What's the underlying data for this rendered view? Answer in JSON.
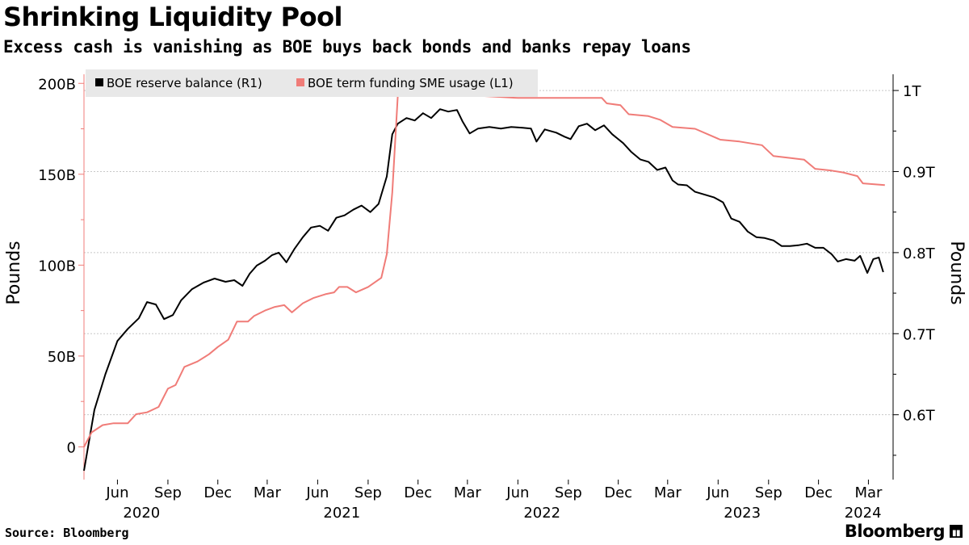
{
  "header": {
    "title": "Shrinking Liquidity Pool",
    "subtitle": "Excess cash is vanishing as BOE buys back bonds and banks repay loans"
  },
  "footer": {
    "source": "Source: Bloomberg",
    "brand": "Bloomberg"
  },
  "chart_data": {
    "type": "line",
    "x_domain": [
      "2020-04-01",
      "2024-04-15"
    ],
    "x_ticks": [
      {
        "date": "2020-06-01",
        "label": "Jun"
      },
      {
        "date": "2020-09-01",
        "label": "Sep"
      },
      {
        "date": "2020-12-01",
        "label": "Dec"
      },
      {
        "date": "2021-03-01",
        "label": "Mar"
      },
      {
        "date": "2021-06-01",
        "label": "Jun"
      },
      {
        "date": "2021-09-01",
        "label": "Sep"
      },
      {
        "date": "2021-12-01",
        "label": "Dec"
      },
      {
        "date": "2022-03-01",
        "label": "Mar"
      },
      {
        "date": "2022-06-01",
        "label": "Jun"
      },
      {
        "date": "2022-09-01",
        "label": "Sep"
      },
      {
        "date": "2022-12-01",
        "label": "Dec"
      },
      {
        "date": "2023-03-01",
        "label": "Mar"
      },
      {
        "date": "2023-06-01",
        "label": "Jun"
      },
      {
        "date": "2023-09-01",
        "label": "Sep"
      },
      {
        "date": "2023-12-01",
        "label": "Dec"
      },
      {
        "date": "2024-03-01",
        "label": "Mar"
      }
    ],
    "year_labels": [
      {
        "date": "2020-07-15",
        "label": "2020"
      },
      {
        "date": "2021-07-15",
        "label": "2021"
      },
      {
        "date": "2022-07-15",
        "label": "2022"
      },
      {
        "date": "2023-07-15",
        "label": "2023"
      },
      {
        "date": "2024-02-20",
        "label": "2024"
      }
    ],
    "left_axis": {
      "label": "Pounds",
      "ylim": [
        -18,
        205
      ],
      "ticks": [
        {
          "value": 0,
          "label": "0"
        },
        {
          "value": 50,
          "label": "50B"
        },
        {
          "value": 100,
          "label": "100B"
        },
        {
          "value": 150,
          "label": "150B"
        },
        {
          "value": 200,
          "label": "200B"
        }
      ],
      "color": "#f07c78"
    },
    "right_axis": {
      "label": "Pounds",
      "ylim": [
        0.52,
        1.02
      ],
      "ticks": [
        {
          "value": 0.6,
          "label": "0.6T"
        },
        {
          "value": 0.7,
          "label": "0.7T"
        },
        {
          "value": 0.8,
          "label": "0.8T"
        },
        {
          "value": 0.9,
          "label": "0.9T"
        },
        {
          "value": 1.0,
          "label": "1T"
        }
      ],
      "color": "#000000"
    },
    "grid": true,
    "legend_placement": "top-left",
    "series": [
      {
        "name": "BOE reserve balance (R1)",
        "axis": "right",
        "color": "#000000",
        "points": [
          [
            "2020-04-01",
            0.531
          ],
          [
            "2020-04-20",
            0.606
          ],
          [
            "2020-05-10",
            0.65
          ],
          [
            "2020-06-01",
            0.691
          ],
          [
            "2020-06-20",
            0.706
          ],
          [
            "2020-07-10",
            0.719
          ],
          [
            "2020-07-25",
            0.739
          ],
          [
            "2020-08-10",
            0.736
          ],
          [
            "2020-08-25",
            0.718
          ],
          [
            "2020-09-10",
            0.723
          ],
          [
            "2020-09-25",
            0.741
          ],
          [
            "2020-10-15",
            0.755
          ],
          [
            "2020-11-05",
            0.763
          ],
          [
            "2020-11-25",
            0.768
          ],
          [
            "2020-12-15",
            0.764
          ],
          [
            "2020-12-31",
            0.766
          ],
          [
            "2021-01-15",
            0.759
          ],
          [
            "2021-01-28",
            0.774
          ],
          [
            "2021-02-10",
            0.784
          ],
          [
            "2021-02-25",
            0.79
          ],
          [
            "2021-03-10",
            0.797
          ],
          [
            "2021-03-22",
            0.8
          ],
          [
            "2021-04-05",
            0.788
          ],
          [
            "2021-04-20",
            0.805
          ],
          [
            "2021-05-05",
            0.819
          ],
          [
            "2021-05-20",
            0.831
          ],
          [
            "2021-06-05",
            0.833
          ],
          [
            "2021-06-20",
            0.827
          ],
          [
            "2021-07-05",
            0.843
          ],
          [
            "2021-07-20",
            0.846
          ],
          [
            "2021-08-05",
            0.853
          ],
          [
            "2021-08-20",
            0.858
          ],
          [
            "2021-09-05",
            0.85
          ],
          [
            "2021-09-20",
            0.86
          ],
          [
            "2021-10-05",
            0.894
          ],
          [
            "2021-10-15",
            0.946
          ],
          [
            "2021-10-25",
            0.959
          ],
          [
            "2021-11-10",
            0.966
          ],
          [
            "2021-11-25",
            0.963
          ],
          [
            "2021-12-10",
            0.972
          ],
          [
            "2021-12-25",
            0.966
          ],
          [
            "2022-01-10",
            0.977
          ],
          [
            "2022-01-25",
            0.974
          ],
          [
            "2022-02-10",
            0.976
          ],
          [
            "2022-02-20",
            0.962
          ],
          [
            "2022-03-05",
            0.947
          ],
          [
            "2022-03-20",
            0.953
          ],
          [
            "2022-04-10",
            0.955
          ],
          [
            "2022-05-01",
            0.953
          ],
          [
            "2022-05-20",
            0.955
          ],
          [
            "2022-06-10",
            0.954
          ],
          [
            "2022-06-25",
            0.953
          ],
          [
            "2022-07-05",
            0.937
          ],
          [
            "2022-07-20",
            0.952
          ],
          [
            "2022-08-10",
            0.948
          ],
          [
            "2022-08-25",
            0.943
          ],
          [
            "2022-09-05",
            0.94
          ],
          [
            "2022-09-20",
            0.956
          ],
          [
            "2022-10-05",
            0.959
          ],
          [
            "2022-10-20",
            0.951
          ],
          [
            "2022-11-05",
            0.957
          ],
          [
            "2022-11-20",
            0.946
          ],
          [
            "2022-12-10",
            0.935
          ],
          [
            "2022-12-25",
            0.924
          ],
          [
            "2023-01-10",
            0.915
          ],
          [
            "2023-01-25",
            0.912
          ],
          [
            "2023-02-10",
            0.902
          ],
          [
            "2023-02-25",
            0.905
          ],
          [
            "2023-03-10",
            0.889
          ],
          [
            "2023-03-20",
            0.884
          ],
          [
            "2023-04-05",
            0.883
          ],
          [
            "2023-04-20",
            0.875
          ],
          [
            "2023-05-10",
            0.871
          ],
          [
            "2023-05-25",
            0.868
          ],
          [
            "2023-06-10",
            0.862
          ],
          [
            "2023-06-25",
            0.842
          ],
          [
            "2023-07-10",
            0.838
          ],
          [
            "2023-07-25",
            0.826
          ],
          [
            "2023-08-10",
            0.819
          ],
          [
            "2023-08-25",
            0.818
          ],
          [
            "2023-09-10",
            0.815
          ],
          [
            "2023-09-25",
            0.808
          ],
          [
            "2023-10-10",
            0.808
          ],
          [
            "2023-10-25",
            0.809
          ],
          [
            "2023-11-10",
            0.811
          ],
          [
            "2023-11-25",
            0.806
          ],
          [
            "2023-12-10",
            0.806
          ],
          [
            "2023-12-25",
            0.798
          ],
          [
            "2024-01-05",
            0.789
          ],
          [
            "2024-01-20",
            0.792
          ],
          [
            "2024-02-05",
            0.79
          ],
          [
            "2024-02-15",
            0.796
          ],
          [
            "2024-02-28",
            0.775
          ],
          [
            "2024-03-10",
            0.792
          ],
          [
            "2024-03-20",
            0.794
          ],
          [
            "2024-03-28",
            0.776
          ]
        ]
      },
      {
        "name": "BOE term funding SME usage (L1)",
        "axis": "left",
        "color": "#f07c78",
        "points": [
          [
            "2020-04-01",
            0
          ],
          [
            "2020-04-15",
            8
          ],
          [
            "2020-05-05",
            12
          ],
          [
            "2020-05-25",
            13
          ],
          [
            "2020-06-20",
            13
          ],
          [
            "2020-07-05",
            18
          ],
          [
            "2020-07-25",
            19
          ],
          [
            "2020-08-15",
            22
          ],
          [
            "2020-09-01",
            32
          ],
          [
            "2020-09-15",
            34
          ],
          [
            "2020-10-01",
            44
          ],
          [
            "2020-10-25",
            47
          ],
          [
            "2020-11-15",
            51
          ],
          [
            "2020-12-01",
            55
          ],
          [
            "2020-12-20",
            59
          ],
          [
            "2021-01-05",
            69
          ],
          [
            "2021-01-25",
            69
          ],
          [
            "2021-02-05",
            72
          ],
          [
            "2021-02-25",
            75
          ],
          [
            "2021-03-15",
            77
          ],
          [
            "2021-04-01",
            78
          ],
          [
            "2021-04-15",
            74
          ],
          [
            "2021-05-05",
            79
          ],
          [
            "2021-05-25",
            82
          ],
          [
            "2021-06-15",
            84
          ],
          [
            "2021-07-01",
            85
          ],
          [
            "2021-07-10",
            88
          ],
          [
            "2021-07-25",
            88
          ],
          [
            "2021-08-10",
            85
          ],
          [
            "2021-09-01",
            88
          ],
          [
            "2021-09-25",
            93
          ],
          [
            "2021-10-05",
            106
          ],
          [
            "2021-10-15",
            140
          ],
          [
            "2021-10-25",
            193
          ],
          [
            "2021-11-15",
            193
          ],
          [
            "2022-01-10",
            193
          ],
          [
            "2022-03-01",
            193
          ],
          [
            "2022-04-01",
            193
          ],
          [
            "2022-06-01",
            192
          ],
          [
            "2022-11-01",
            192
          ],
          [
            "2022-11-10",
            189
          ],
          [
            "2022-12-05",
            188
          ],
          [
            "2022-12-20",
            183
          ],
          [
            "2023-01-25",
            182
          ],
          [
            "2023-02-15",
            180
          ],
          [
            "2023-03-10",
            176
          ],
          [
            "2023-04-20",
            175
          ],
          [
            "2023-06-05",
            169
          ],
          [
            "2023-07-10",
            168
          ],
          [
            "2023-08-20",
            166
          ],
          [
            "2023-09-10",
            160
          ],
          [
            "2023-10-10",
            159
          ],
          [
            "2023-11-05",
            158
          ],
          [
            "2023-11-25",
            153
          ],
          [
            "2023-12-25",
            152
          ],
          [
            "2024-01-15",
            151
          ],
          [
            "2024-02-10",
            149
          ],
          [
            "2024-02-20",
            145
          ],
          [
            "2024-03-31",
            144
          ]
        ]
      }
    ]
  }
}
